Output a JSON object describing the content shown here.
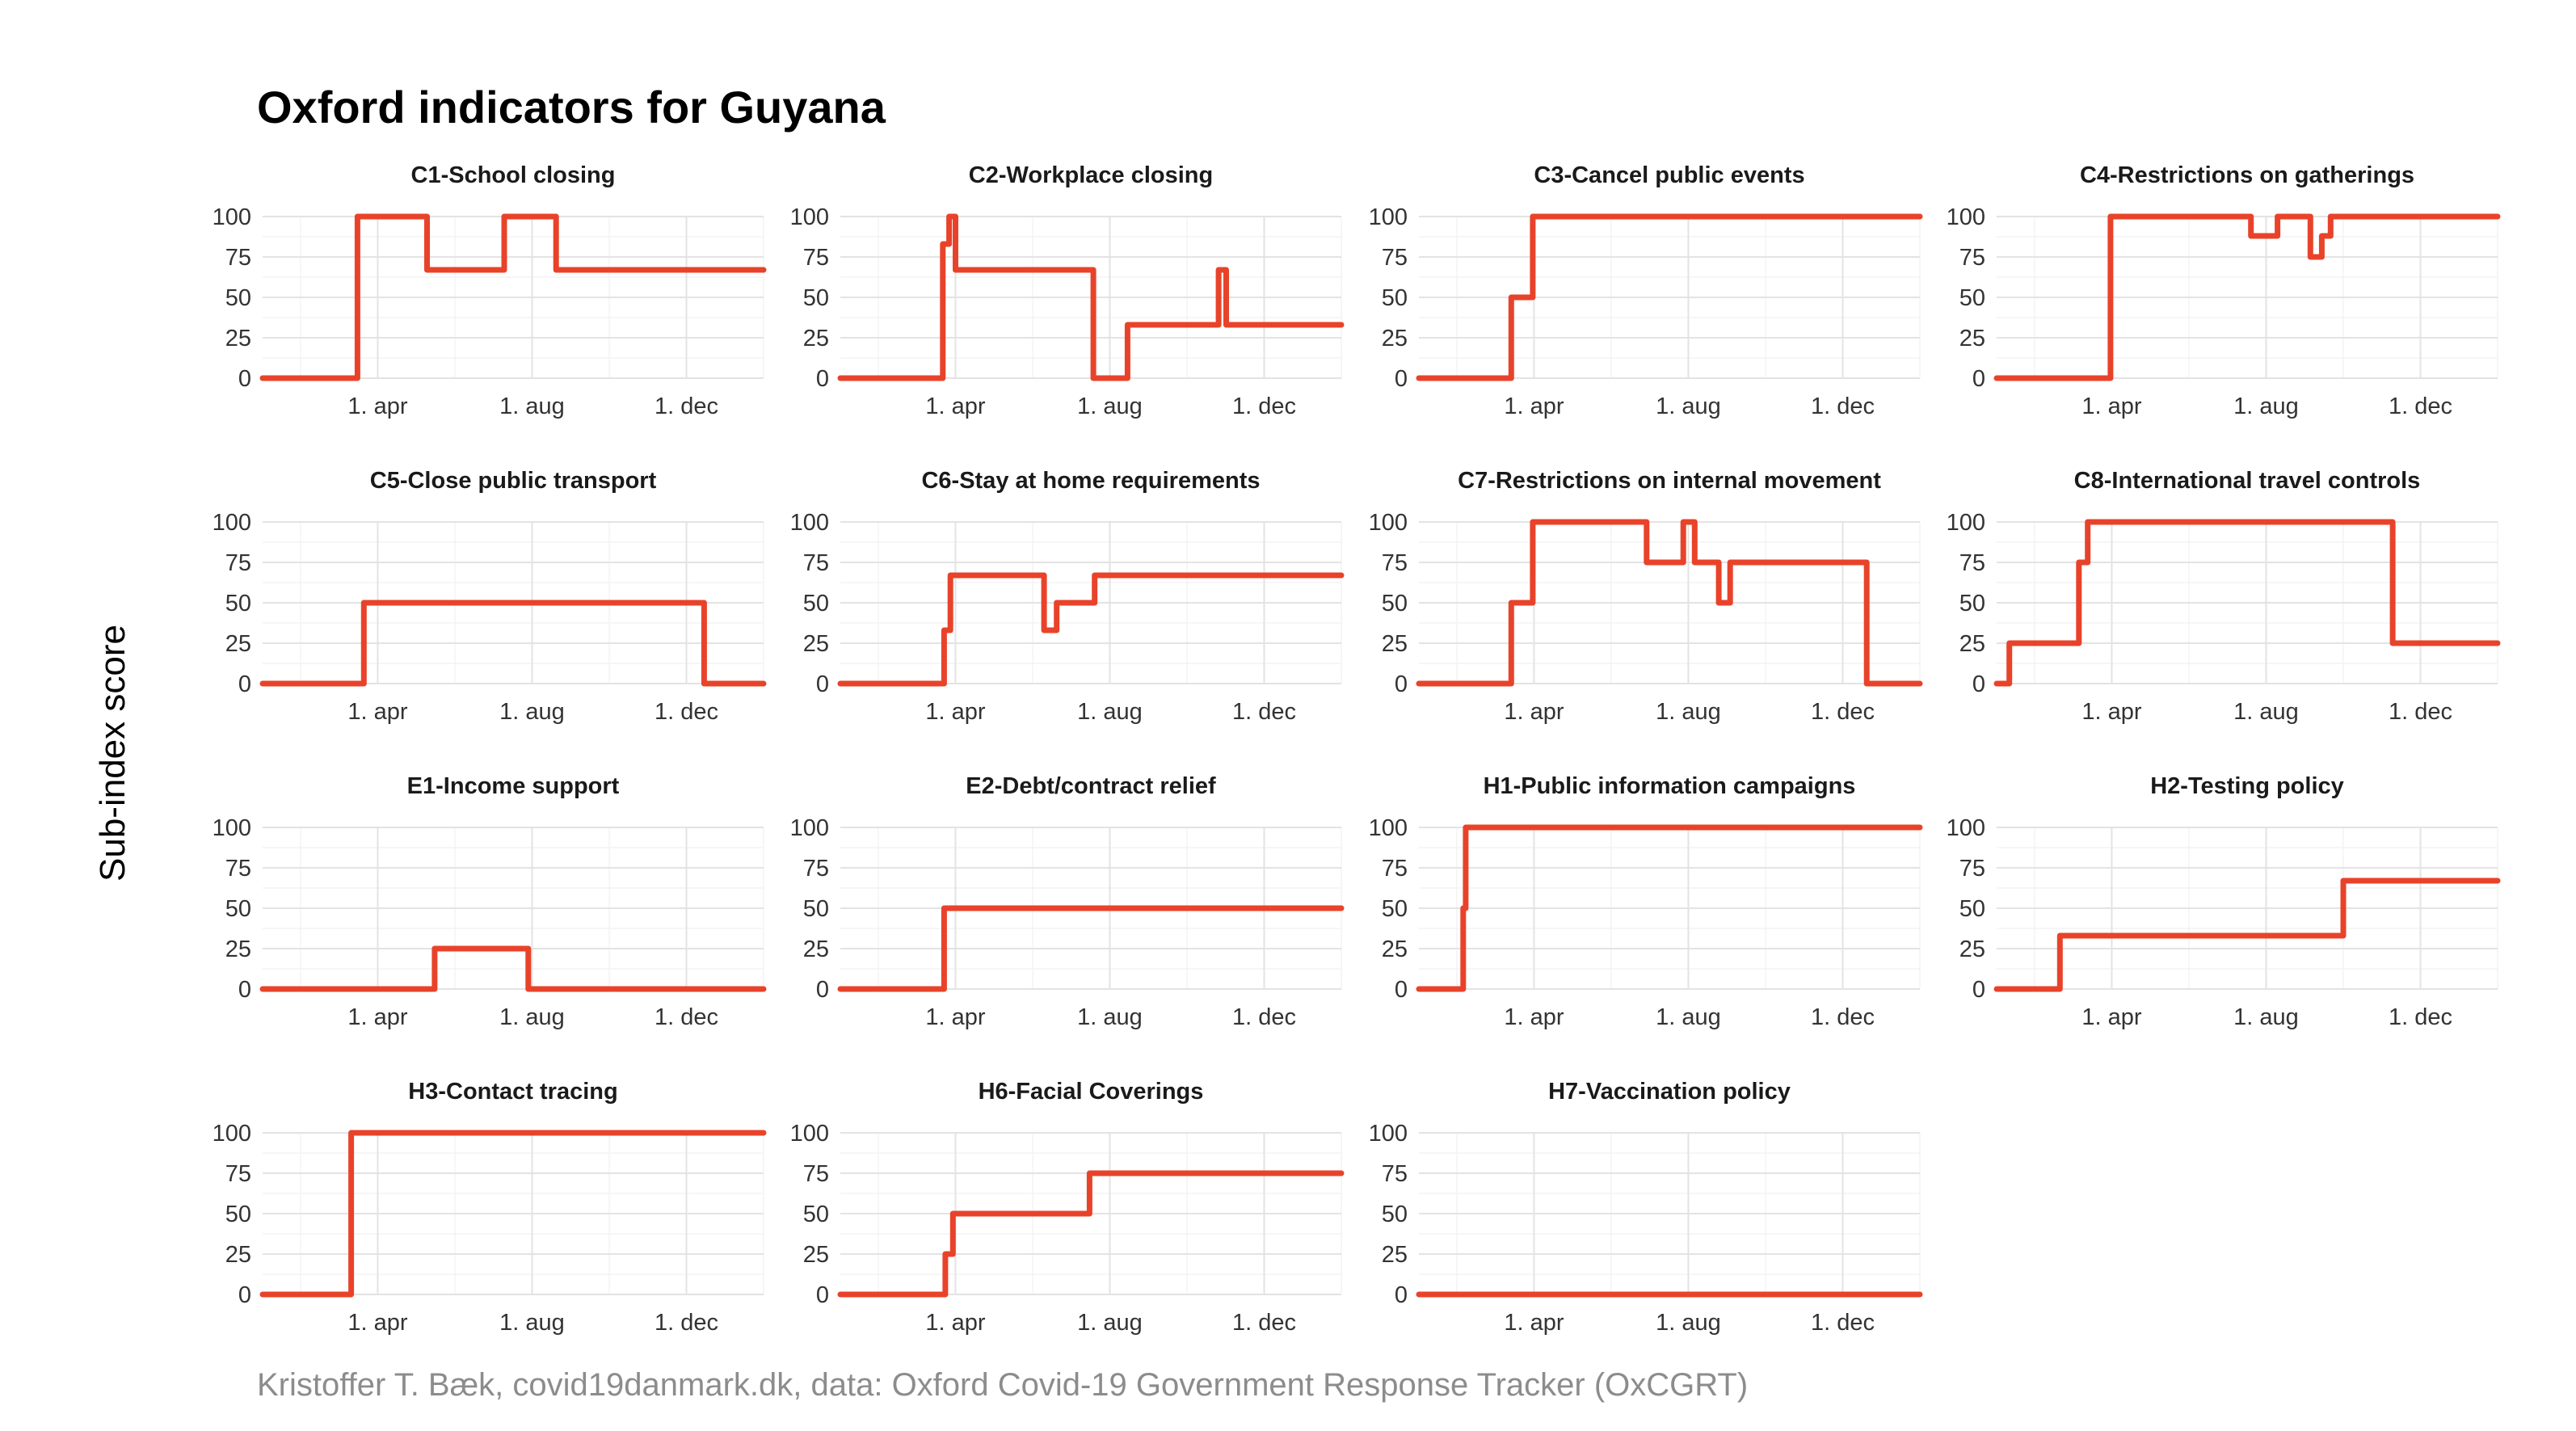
{
  "title": "Oxford indicators for Guyana",
  "ylabel": "Sub-index score",
  "caption": "Kristoffer T. Bæk, covid19danmark.dk, data: Oxford Covid-19 Government Response Tracker (OxCGRT)",
  "colors": {
    "series": "#e8432a"
  },
  "chart_data": {
    "type": "line",
    "facet_layout": "4 columns × 4 rows (small multiples)",
    "x_type": "date",
    "xlim": [
      "2020-01-01",
      "2021-01-31"
    ],
    "x_ticks": [
      {
        "date": "2020-04-01",
        "label": "1. apr"
      },
      {
        "date": "2020-08-01",
        "label": "1. aug"
      },
      {
        "date": "2020-12-01",
        "label": "1. dec"
      }
    ],
    "ylim": [
      0,
      100
    ],
    "y_ticks": [
      0,
      25,
      50,
      75,
      100
    ],
    "grid": true,
    "panels": [
      {
        "title": "C1-School closing",
        "steps": [
          [
            "2020-01-01",
            0
          ],
          [
            "2020-03-16",
            100
          ],
          [
            "2020-05-10",
            67
          ],
          [
            "2020-07-10",
            100
          ],
          [
            "2020-08-20",
            67
          ],
          [
            "2021-01-31",
            67
          ]
        ]
      },
      {
        "title": "C2-Workplace closing",
        "steps": [
          [
            "2020-01-01",
            0
          ],
          [
            "2020-03-22",
            83
          ],
          [
            "2020-03-27",
            100
          ],
          [
            "2020-04-01",
            67
          ],
          [
            "2020-07-19",
            0
          ],
          [
            "2020-08-15",
            33
          ],
          [
            "2020-10-26",
            67
          ],
          [
            "2020-11-01",
            33
          ],
          [
            "2021-01-31",
            33
          ]
        ]
      },
      {
        "title": "C3-Cancel public events",
        "steps": [
          [
            "2020-01-01",
            0
          ],
          [
            "2020-03-14",
            50
          ],
          [
            "2020-03-31",
            100
          ],
          [
            "2021-01-31",
            100
          ]
        ]
      },
      {
        "title": "C4-Restrictions on gatherings",
        "steps": [
          [
            "2020-01-01",
            0
          ],
          [
            "2020-03-31",
            100
          ],
          [
            "2020-07-20",
            88
          ],
          [
            "2020-08-10",
            100
          ],
          [
            "2020-09-05",
            75
          ],
          [
            "2020-09-14",
            88
          ],
          [
            "2020-09-21",
            100
          ],
          [
            "2021-01-31",
            100
          ]
        ]
      },
      {
        "title": "C5-Close public transport",
        "steps": [
          [
            "2020-01-01",
            0
          ],
          [
            "2020-03-21",
            50
          ],
          [
            "2020-12-15",
            0
          ],
          [
            "2021-01-31",
            0
          ]
        ]
      },
      {
        "title": "C6-Stay at home requirements",
        "steps": [
          [
            "2020-01-01",
            0
          ],
          [
            "2020-03-23",
            33
          ],
          [
            "2020-03-28",
            67
          ],
          [
            "2020-06-10",
            33
          ],
          [
            "2020-06-20",
            50
          ],
          [
            "2020-07-20",
            67
          ],
          [
            "2021-01-31",
            67
          ]
        ]
      },
      {
        "title": "C7-Restrictions on internal movement",
        "steps": [
          [
            "2020-01-01",
            0
          ],
          [
            "2020-03-14",
            50
          ],
          [
            "2020-03-31",
            100
          ],
          [
            "2020-06-29",
            75
          ],
          [
            "2020-07-28",
            100
          ],
          [
            "2020-08-06",
            75
          ],
          [
            "2020-08-25",
            50
          ],
          [
            "2020-09-03",
            75
          ],
          [
            "2020-12-20",
            0
          ],
          [
            "2021-01-31",
            0
          ]
        ]
      },
      {
        "title": "C8-International travel controls",
        "steps": [
          [
            "2020-01-01",
            0
          ],
          [
            "2020-01-11",
            25
          ],
          [
            "2020-03-06",
            75
          ],
          [
            "2020-03-13",
            100
          ],
          [
            "2020-11-09",
            25
          ],
          [
            "2021-01-31",
            25
          ]
        ]
      },
      {
        "title": "E1-Income support",
        "steps": [
          [
            "2020-01-01",
            0
          ],
          [
            "2020-05-16",
            25
          ],
          [
            "2020-07-29",
            0
          ],
          [
            "2021-01-31",
            0
          ]
        ]
      },
      {
        "title": "E2-Debt/contract relief",
        "steps": [
          [
            "2020-01-01",
            0
          ],
          [
            "2020-03-23",
            50
          ],
          [
            "2021-01-31",
            50
          ]
        ]
      },
      {
        "title": "H1-Public information campaigns",
        "steps": [
          [
            "2020-01-01",
            0
          ],
          [
            "2020-02-05",
            50
          ],
          [
            "2020-02-07",
            100
          ],
          [
            "2021-01-31",
            100
          ]
        ]
      },
      {
        "title": "H2-Testing policy",
        "steps": [
          [
            "2020-01-01",
            0
          ],
          [
            "2020-02-20",
            33
          ],
          [
            "2020-10-01",
            67
          ],
          [
            "2021-01-31",
            67
          ]
        ]
      },
      {
        "title": "H3-Contact tracing",
        "steps": [
          [
            "2020-01-01",
            0
          ],
          [
            "2020-03-11",
            100
          ],
          [
            "2021-01-31",
            100
          ]
        ]
      },
      {
        "title": "H6-Facial Coverings",
        "steps": [
          [
            "2020-01-01",
            0
          ],
          [
            "2020-03-24",
            25
          ],
          [
            "2020-03-30",
            50
          ],
          [
            "2020-07-16",
            75
          ],
          [
            "2021-01-31",
            75
          ]
        ]
      },
      {
        "title": "H7-Vaccination policy",
        "steps": [
          [
            "2020-01-01",
            0
          ],
          [
            "2021-01-31",
            0
          ]
        ]
      }
    ]
  }
}
